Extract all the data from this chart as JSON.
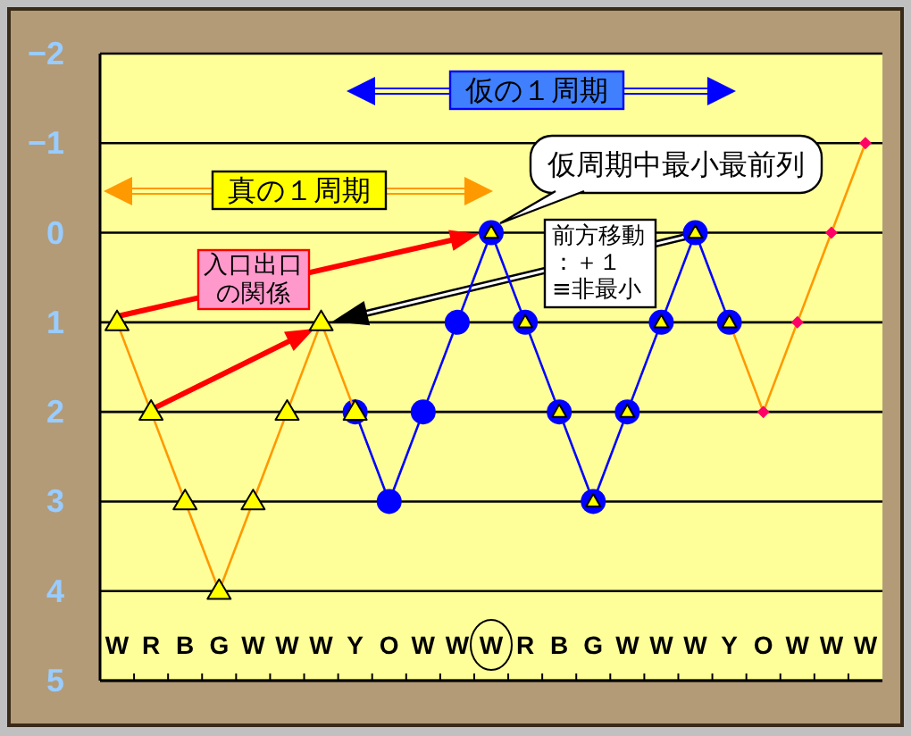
{
  "chart_data": {
    "type": "line",
    "categories": [
      "W",
      "R",
      "B",
      "G",
      "W",
      "W",
      "W",
      "Y",
      "O",
      "W",
      "W",
      "W",
      "R",
      "B",
      "G",
      "W",
      "W",
      "W",
      "Y",
      "O",
      "W",
      "W",
      "W"
    ],
    "ylim": [
      5,
      -2
    ],
    "yticks": [
      -2,
      -1,
      0,
      1,
      2,
      3,
      4,
      5
    ],
    "grid": "y",
    "series": [
      {
        "color": "#ff9900",
        "values": [
          null,
          null,
          null,
          null,
          null,
          null,
          null,
          null,
          null,
          null,
          null,
          null,
          null,
          null,
          null,
          null,
          null,
          null,
          1,
          2,
          1,
          0,
          -1
        ]
      },
      {
        "color": "#0000ff",
        "marker": "circle",
        "values": [
          null,
          null,
          null,
          null,
          null,
          null,
          null,
          2,
          3,
          2,
          1,
          0,
          1,
          2,
          3,
          2,
          1,
          0,
          1,
          null,
          null,
          null,
          null
        ]
      },
      {
        "color": "#ff9900",
        "marker": "triangle",
        "colors": [
          "#ffff00",
          "#ffff00",
          "#ffff00",
          "#ffff00",
          "#ffff00",
          "#ffff00",
          "#ffff00",
          "#ffff00",
          null,
          null,
          null,
          null,
          null,
          null,
          null,
          null,
          null,
          null,
          null,
          null,
          null,
          null,
          null
        ],
        "values": [
          1,
          2,
          3,
          4,
          3,
          2,
          1,
          2,
          null,
          null,
          null,
          null,
          null,
          null,
          null,
          null,
          null,
          null,
          null,
          null,
          null,
          null,
          null
        ]
      },
      {
        "type": "scatter",
        "color": "#ffff00",
        "marker": "triangle",
        "values": [
          null,
          null,
          null,
          null,
          null,
          null,
          null,
          null,
          null,
          null,
          null,
          0,
          1,
          2,
          3,
          2,
          1,
          0,
          1,
          null,
          null,
          null,
          null
        ]
      },
      {
        "type": "scatter",
        "color": "#ff0066",
        "marker": "diamond",
        "values": [
          null,
          null,
          null,
          null,
          null,
          null,
          null,
          null,
          null,
          null,
          null,
          null,
          null,
          null,
          null,
          null,
          null,
          null,
          null,
          2,
          1,
          0,
          -1
        ]
      }
    ],
    "annotations": [
      "仮の１周期",
      "真の１周期",
      "仮周期中最小最前列",
      {
        "text": "入口出口の関係",
        "x": "R",
        "y": 2
      },
      "前方移動：＋１≡非最小"
    ]
  }
}
